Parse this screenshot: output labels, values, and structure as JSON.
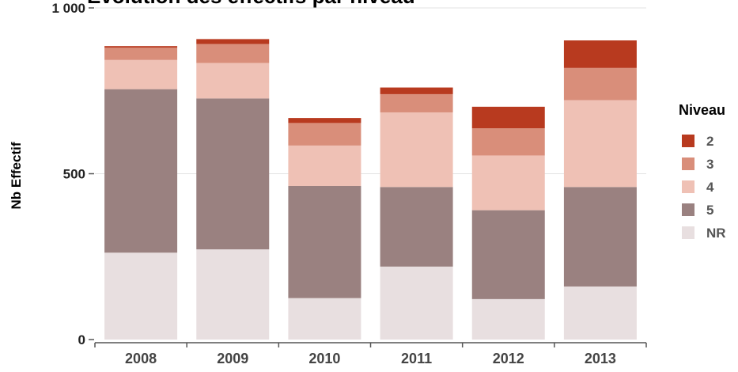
{
  "chart_data": {
    "type": "bar",
    "stacked": true,
    "title": "Évolution des effectifs par niveau",
    "xlabel": "",
    "ylabel": "Nb Effectif",
    "categories": [
      "2008",
      "2009",
      "2010",
      "2011",
      "2012",
      "2013"
    ],
    "ylim": [
      0,
      1000
    ],
    "yticks": [
      0,
      500,
      1000
    ],
    "ytick_labels": [
      "0",
      "500",
      "1 000"
    ],
    "grid": true,
    "legend": {
      "title": "Niveau",
      "position": "right"
    },
    "series": [
      {
        "name": "NR",
        "color": "#e8dfe0",
        "values": [
          262,
          272,
          125,
          220,
          122,
          160
        ]
      },
      {
        "name": "5",
        "color": "#9a8180",
        "values": [
          493,
          455,
          338,
          240,
          268,
          300
        ]
      },
      {
        "name": "4",
        "color": "#efc1b5",
        "values": [
          88,
          107,
          122,
          225,
          165,
          262
        ]
      },
      {
        "name": "3",
        "color": "#d98e7a",
        "values": [
          37,
          57,
          68,
          55,
          82,
          97
        ]
      },
      {
        "name": "2",
        "color": "#b83a1f",
        "values": [
          5,
          15,
          15,
          20,
          65,
          83
        ]
      }
    ]
  }
}
